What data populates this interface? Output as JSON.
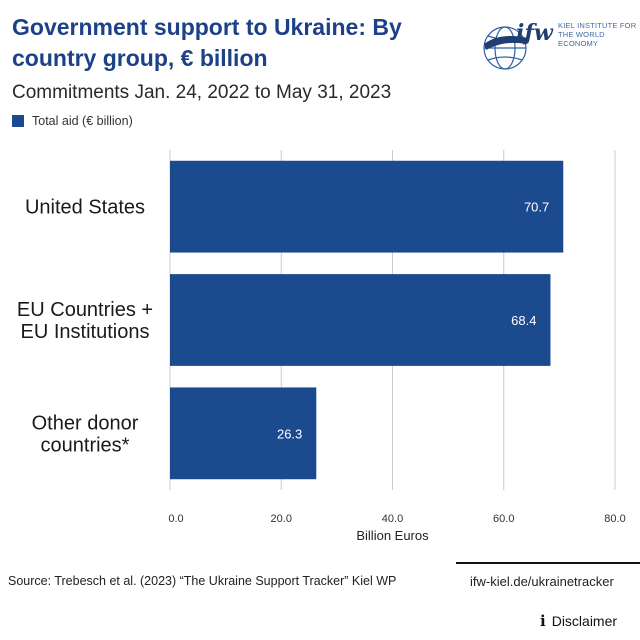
{
  "header": {
    "title": "Government support to Ukraine: By country group, € billion",
    "subtitle": "Commitments Jan. 24, 2022 to May 31, 2023"
  },
  "logo": {
    "mark": "ifw",
    "line1": "KIEL INSTITUTE FOR",
    "line2": "THE WORLD ECONOMY",
    "icon": "globe-icon"
  },
  "colors": {
    "bar": "#1c4a8f",
    "title": "#1c4187",
    "grid": "#cccccc"
  },
  "chart_data": {
    "type": "bar",
    "orientation": "horizontal",
    "categories": [
      "United States",
      "EU Countries + EU Institutions",
      "Other donor countries*"
    ],
    "series": [
      {
        "name": "Total aid (€ billion)",
        "values": [
          70.7,
          68.4,
          26.3
        ]
      }
    ],
    "data_labels": [
      "70.7",
      "68.4",
      "26.3"
    ],
    "xlabel": "Billion Euros",
    "xlim": [
      0,
      80
    ],
    "xticks": [
      "0.0",
      "20.0",
      "40.0",
      "60.0",
      "80.0"
    ],
    "grid": true,
    "legend_position": "top-left"
  },
  "footer": {
    "source": "Source: Trebesch et al. (2023) “The Ukraine Support Tracker” Kiel WP",
    "site": "ifw-kiel.de/ukrainetracker",
    "disclaimer_label": "Disclaimer",
    "disclaimer_icon": "info-icon"
  }
}
